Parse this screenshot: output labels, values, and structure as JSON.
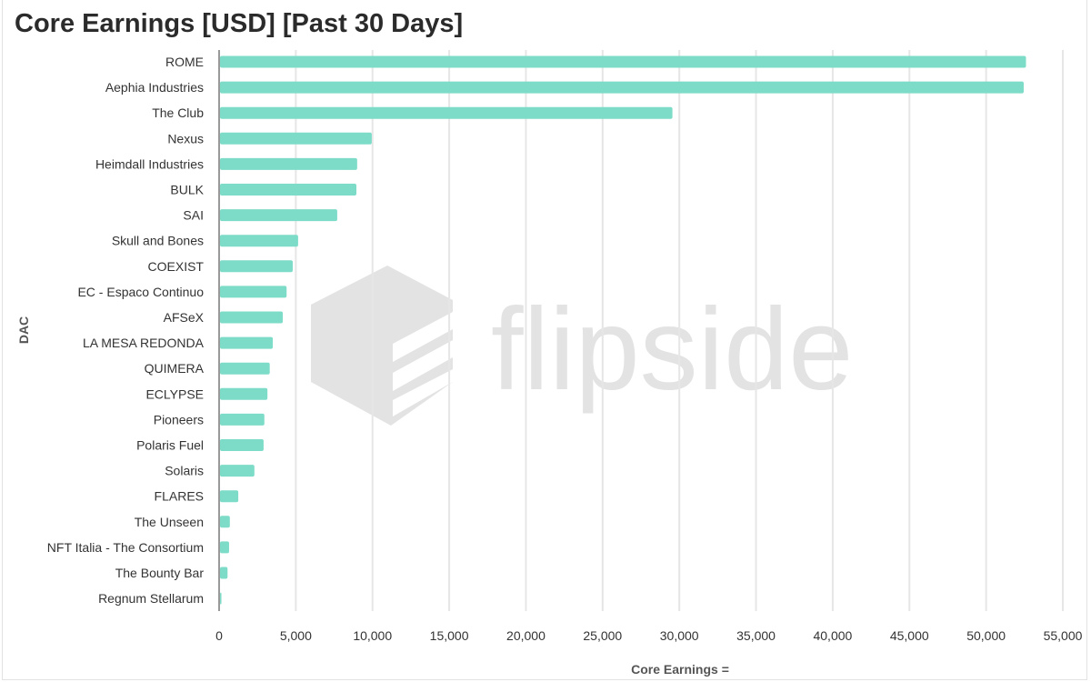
{
  "chart_data": {
    "type": "bar",
    "orientation": "horizontal",
    "title": "Core Earnings [USD] [Past 30 Days]",
    "xlabel": "Core Earnings =",
    "ylabel": "DAC",
    "xlim": [
      0,
      55000
    ],
    "xticks": [
      0,
      5000,
      10000,
      15000,
      20000,
      25000,
      30000,
      35000,
      40000,
      45000,
      50000,
      55000
    ],
    "xtick_labels": [
      "0",
      "5,000",
      "10,000",
      "15,000",
      "20,000",
      "25,000",
      "30,000",
      "35,000",
      "40,000",
      "45,000",
      "50,000",
      "55,000"
    ],
    "grid": "vertical",
    "color": "#7ddcc8",
    "categories": [
      "ROME",
      "Aephia Industries",
      "The Club",
      "Nexus",
      "Heimdall Industries",
      "BULK",
      "SAI",
      "Skull and Bones",
      "COEXIST",
      "EC - Espaco Continuo",
      "AFSeX",
      "LA MESA REDONDA",
      "QUIMERA",
      "ECLYPSE",
      "Pioneers",
      "Polaris Fuel",
      "Solaris",
      "FLARES",
      "The Unseen",
      "NFT Italia - The Consortium",
      "The Bounty Bar",
      "Regnum Stellarum"
    ],
    "values": [
      52600,
      52450,
      29550,
      9950,
      9000,
      8950,
      7700,
      5150,
      4800,
      4400,
      4150,
      3500,
      3300,
      3150,
      2950,
      2900,
      2300,
      1250,
      700,
      650,
      550,
      150
    ]
  },
  "watermark": {
    "text": "flipside",
    "color": "#e3e3e3"
  }
}
